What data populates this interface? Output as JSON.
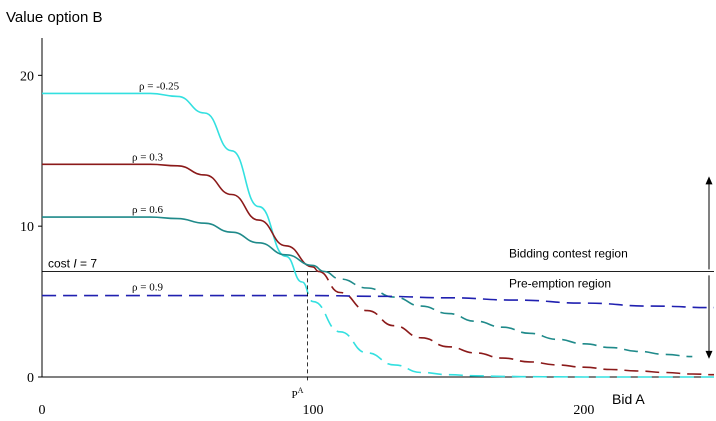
{
  "chart_data": {
    "type": "line",
    "ylabel": "Value option B",
    "xlabel": "Bid A",
    "xlim": [
      0,
      248
    ],
    "ylim": [
      0,
      24
    ],
    "x_ticks": [
      {
        "value": 0,
        "label": "0"
      },
      {
        "value": 100,
        "label": "100"
      },
      {
        "value": 200,
        "label": "200"
      }
    ],
    "y_ticks": [
      {
        "value": 0,
        "label": "0"
      },
      {
        "value": 10,
        "label": "10"
      },
      {
        "value": 20,
        "label": "20"
      }
    ],
    "cost": {
      "value": 7,
      "label_prefix": "cost ",
      "label_var": "I",
      "label_suffix": " = 7"
    },
    "marker": {
      "x": 98,
      "label_base": "P",
      "label_sup": "A"
    },
    "regions": {
      "upper": "Bidding contest region",
      "lower": "Pre-emption region"
    },
    "series": [
      {
        "name": "ρ = -0.25",
        "color": "#33e0e0",
        "switch_x": 96,
        "x": [
          0,
          10,
          20,
          30,
          40,
          50,
          60,
          70,
          80,
          90,
          96,
          100,
          110,
          120,
          130,
          140,
          150,
          160,
          170,
          180,
          190,
          200,
          210,
          220,
          230,
          240,
          248
        ],
        "y": [
          18.8,
          18.8,
          18.8,
          18.8,
          18.8,
          18.6,
          17.5,
          15.0,
          11.3,
          8.0,
          6.3,
          5.0,
          3.0,
          1.6,
          0.8,
          0.3,
          0.15,
          0.08,
          0.04,
          0.02,
          0.01,
          0.0,
          0.0,
          0.0,
          0.0,
          0.0,
          0.0
        ]
      },
      {
        "name": "ρ = 0.3",
        "color": "#8b1a1a",
        "switch_x": 102,
        "x": [
          0,
          10,
          20,
          30,
          40,
          50,
          60,
          70,
          80,
          90,
          100,
          102,
          110,
          120,
          130,
          140,
          150,
          160,
          170,
          180,
          190,
          200,
          210,
          220,
          230,
          240,
          248
        ],
        "y": [
          14.1,
          14.1,
          14.1,
          14.1,
          14.1,
          14.0,
          13.4,
          12.1,
          10.4,
          8.7,
          7.3,
          7.0,
          5.6,
          4.4,
          3.4,
          2.6,
          2.0,
          1.6,
          1.25,
          1.0,
          0.8,
          0.65,
          0.5,
          0.4,
          0.3,
          0.2,
          0.15
        ]
      },
      {
        "name": "ρ = 0.6",
        "color": "#1f8a8a",
        "switch_x": 104,
        "x": [
          0,
          10,
          20,
          30,
          40,
          50,
          60,
          70,
          80,
          90,
          100,
          104,
          110,
          120,
          130,
          140,
          150,
          160,
          170,
          180,
          190,
          200,
          210,
          220,
          230,
          240
        ],
        "y": [
          10.6,
          10.6,
          10.6,
          10.6,
          10.6,
          10.5,
          10.2,
          9.6,
          8.9,
          8.1,
          7.4,
          7.0,
          6.5,
          5.9,
          5.3,
          4.7,
          4.2,
          3.7,
          3.3,
          2.9,
          2.5,
          2.2,
          1.95,
          1.7,
          1.5,
          1.35
        ]
      },
      {
        "name": "ρ = 0.9",
        "color": "#2020b0",
        "switch_x": 0,
        "x": [
          0,
          50,
          100,
          125,
          150,
          175,
          200,
          225,
          248
        ],
        "y": [
          5.4,
          5.4,
          5.4,
          5.35,
          5.25,
          5.1,
          4.9,
          4.7,
          4.6
        ]
      }
    ]
  }
}
